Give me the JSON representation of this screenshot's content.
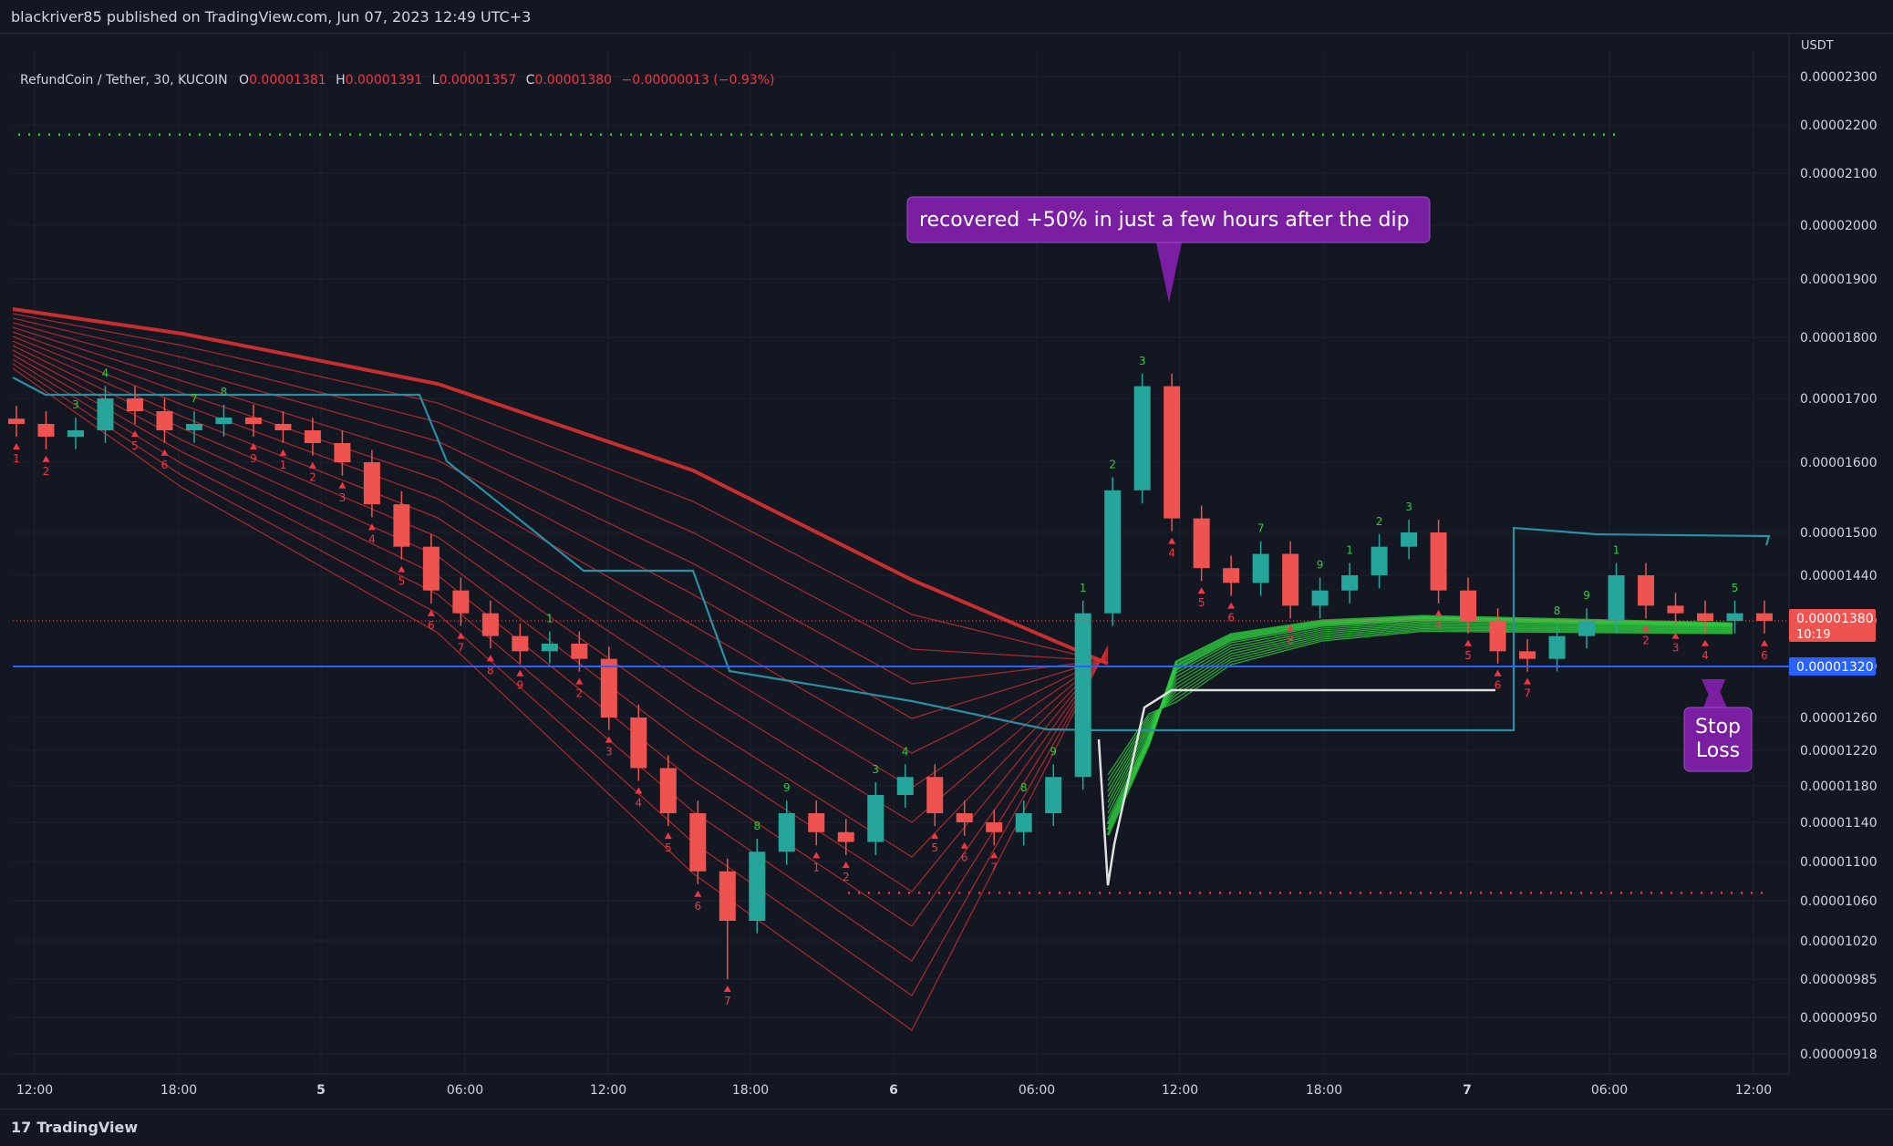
{
  "header": {
    "publisher_line": "blackriver85 published on TradingView.com, Jun 07, 2023 12:49 UTC+3"
  },
  "legend": {
    "symbol": "RefundCoin / Tether, 30, KUCOIN",
    "o_label": "O",
    "o_value": "0.00001381",
    "h_label": "H",
    "h_value": "0.00001391",
    "l_label": "L",
    "l_value": "0.00001357",
    "c_label": "C",
    "c_value": "0.00001380",
    "change": "−0.00000013 (−0.93%)"
  },
  "footer": {
    "brand_mark": "17",
    "brand": "TradingView"
  },
  "colors": {
    "bg": "#131722",
    "grid": "#1e222d",
    "up": "#26a69a",
    "down": "#ef5350",
    "ribbon_red": "#d32f2f",
    "ribbon_green": "#2ecc40",
    "stop_line": "#2962ff",
    "annotation": "#7b1fa2",
    "teal_line": "#2a8fa3"
  },
  "chart_data": {
    "type": "candlestick",
    "currency": "USDT",
    "price_ticks": [
      "0.00002300",
      "0.00002200",
      "0.00002100",
      "0.00002000",
      "0.00001900",
      "0.00001800",
      "0.00001700",
      "0.00001600",
      "0.00001500",
      "0.00001440",
      "0.00001380",
      "0.00001320",
      "0.00001260",
      "0.00001220",
      "0.00001180",
      "0.00001140",
      "0.00001100",
      "0.00001060",
      "0.00001020",
      "0.00000985",
      "0.00000950",
      "0.00000918"
    ],
    "time_ticks": [
      "12:00",
      "18:00",
      "5",
      "06:00",
      "12:00",
      "18:00",
      "6",
      "06:00",
      "12:00",
      "18:00",
      "7",
      "06:00",
      "12:00"
    ],
    "bold_time_ticks": [
      "5",
      "6",
      "7"
    ],
    "last_price": "0.00001380",
    "last_price_countdown": "10:19",
    "stop_loss_price": "0.00001320",
    "resistance_dotted": 2.18e-05,
    "support_dotted": 1.068e-05,
    "annotations": [
      {
        "text": "recovered +50% in just a few hours after the dip",
        "target_price": 1.86e-05,
        "target_time": "Jun 06 11:30"
      },
      {
        "text": "Stop Loss",
        "lines": [
          "Stop",
          "Loss"
        ],
        "target_price": 1.32e-05,
        "target_time": "Jun 07 10:30"
      }
    ],
    "key_prices": {
      "pre_drop_level": 1.7e-05,
      "local_low": 9.85e-06,
      "spike_low": 1.07e-05,
      "recovery_high": 1.78e-05,
      "current": 1.38e-05
    },
    "series": [
      {
        "name": "Price (close path)",
        "values": [
          1.66e-05,
          1.64e-05,
          1.65e-05,
          1.7e-05,
          1.68e-05,
          1.65e-05,
          1.66e-05,
          1.67e-05,
          1.66e-05,
          1.65e-05,
          1.63e-05,
          1.6e-05,
          1.54e-05,
          1.48e-05,
          1.42e-05,
          1.39e-05,
          1.36e-05,
          1.34e-05,
          1.35e-05,
          1.33e-05,
          1.26e-05,
          1.2e-05,
          1.15e-05,
          1.09e-05,
          1.04e-05,
          1.11e-05,
          1.15e-05,
          1.13e-05,
          1.12e-05,
          1.17e-05,
          1.19e-05,
          1.15e-05,
          1.14e-05,
          1.13e-05,
          1.15e-05,
          1.19e-05,
          1.39e-05,
          1.56e-05,
          1.72e-05,
          1.52e-05,
          1.45e-05,
          1.43e-05,
          1.47e-05,
          1.4e-05,
          1.42e-05,
          1.44e-05,
          1.48e-05,
          1.5e-05,
          1.42e-05,
          1.38e-05,
          1.34e-05,
          1.33e-05,
          1.36e-05,
          1.38e-05,
          1.44e-05,
          1.4e-05,
          1.39e-05,
          1.38e-05,
          1.39e-05,
          1.38e-05
        ]
      }
    ]
  }
}
